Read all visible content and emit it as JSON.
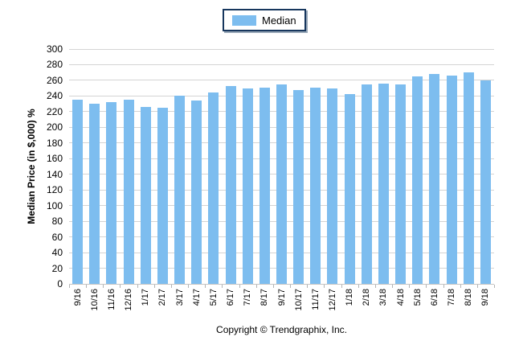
{
  "legend": {
    "label": "Median",
    "border_color": "#17375E"
  },
  "footer": {
    "copyright": "Copyright © Trendgraphix, Inc."
  },
  "chart_data": {
    "type": "bar",
    "title": "",
    "categories": [
      "9/16",
      "10/16",
      "11/16",
      "12/16",
      "1/17",
      "2/17",
      "3/17",
      "4/17",
      "5/17",
      "6/17",
      "7/17",
      "8/17",
      "9/17",
      "10/17",
      "11/17",
      "12/17",
      "1/18",
      "2/18",
      "3/18",
      "4/18",
      "5/18",
      "6/18",
      "7/18",
      "8/18",
      "9/18"
    ],
    "values": [
      235,
      230,
      232,
      235,
      226,
      225,
      240,
      234,
      245,
      253,
      250,
      251,
      255,
      248,
      251,
      250,
      242,
      255,
      256,
      255,
      265,
      268,
      266,
      270,
      260
    ],
    "series": [
      {
        "name": "Median",
        "values": [
          235,
          230,
          232,
          235,
          226,
          225,
          240,
          234,
          245,
          253,
          250,
          251,
          255,
          248,
          251,
          250,
          242,
          255,
          256,
          255,
          265,
          268,
          266,
          270,
          260
        ]
      }
    ],
    "xlabel": "",
    "ylabel": "Median Price (in $,000) %",
    "ylim": [
      0,
      300
    ],
    "ytick_step": 20,
    "grid": true,
    "legend_position": "top-center",
    "bar_color": "#7DBDEF",
    "gridline_color": "#D4D4D4",
    "axis_color": "#C6C6C6",
    "tick_color": "#B3B3B3",
    "text_color": "#000000"
  }
}
